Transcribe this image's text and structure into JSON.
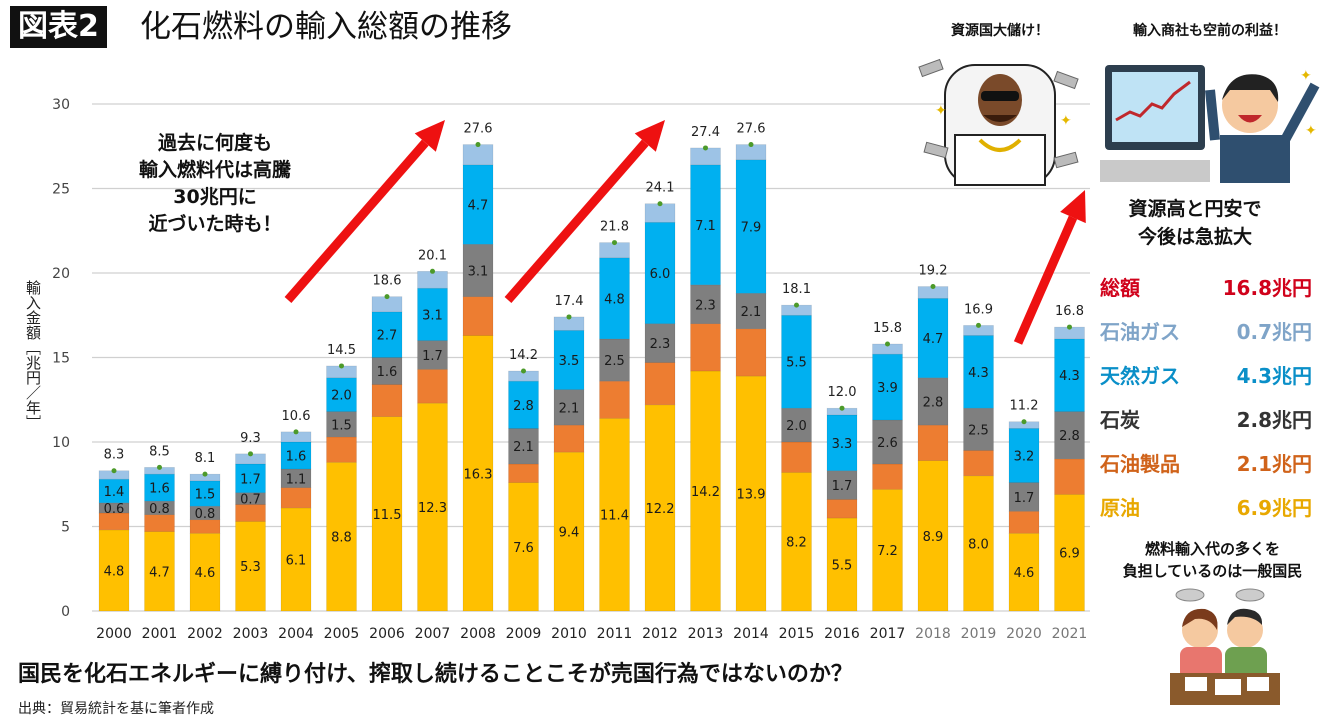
{
  "header": {
    "badge": "図表2",
    "title": "化石燃料の輸入総額の推移"
  },
  "chart_data": {
    "type": "bar",
    "stacked": true,
    "title": "化石燃料の輸入総額の推移",
    "xlabel": "",
    "ylabel": "輸入金額［兆円／年］",
    "ylim": [
      0,
      30
    ],
    "yticks": [
      0,
      5,
      10,
      15,
      20,
      25,
      30
    ],
    "grid": true,
    "categories": [
      "2000",
      "2001",
      "2002",
      "2003",
      "2004",
      "2005",
      "2006",
      "2007",
      "2008",
      "2009",
      "2010",
      "2011",
      "2012",
      "2013",
      "2014",
      "2015",
      "2016",
      "2017",
      "2018",
      "2019",
      "2020",
      "2021"
    ],
    "light_categories": [
      "2018",
      "2019",
      "2020",
      "2021"
    ],
    "totals": [
      8.3,
      8.5,
      8.1,
      9.3,
      10.6,
      14.5,
      18.6,
      20.1,
      27.6,
      14.2,
      17.4,
      21.8,
      24.1,
      27.4,
      27.6,
      18.1,
      12.0,
      15.8,
      19.2,
      16.9,
      11.2,
      16.8
    ],
    "series": [
      {
        "name": "原油",
        "color": "#ffc000",
        "labeled": true,
        "values": [
          4.8,
          4.7,
          4.6,
          5.3,
          6.1,
          8.8,
          11.5,
          12.3,
          16.3,
          7.6,
          9.4,
          11.4,
          12.2,
          14.2,
          13.9,
          8.2,
          5.5,
          7.2,
          8.9,
          8.0,
          4.6,
          6.9
        ]
      },
      {
        "name": "石油製品",
        "color": "#ed7d31",
        "labeled": false,
        "values": [
          1.0,
          1.0,
          0.8,
          1.0,
          1.2,
          1.5,
          1.9,
          2.0,
          2.3,
          1.1,
          1.6,
          2.2,
          2.5,
          2.8,
          2.8,
          1.8,
          1.1,
          1.5,
          2.1,
          1.5,
          1.3,
          2.1
        ]
      },
      {
        "name": "石炭",
        "color": "#7f7f7f",
        "labeled": true,
        "values": [
          0.6,
          0.8,
          0.8,
          0.7,
          1.1,
          1.5,
          1.6,
          1.7,
          3.1,
          2.1,
          2.1,
          2.5,
          2.3,
          2.3,
          2.1,
          2.0,
          1.7,
          2.6,
          2.8,
          2.5,
          1.7,
          2.8
        ]
      },
      {
        "name": "天然ガス",
        "color": "#00b0f0",
        "labeled": true,
        "values": [
          1.4,
          1.6,
          1.5,
          1.7,
          1.6,
          2.0,
          2.7,
          3.1,
          4.7,
          2.8,
          3.5,
          4.8,
          6.0,
          7.1,
          7.9,
          5.5,
          3.3,
          3.9,
          4.7,
          4.3,
          3.2,
          4.3
        ]
      },
      {
        "name": "石油ガス",
        "color": "#9dc3e6",
        "labeled": false,
        "values": [
          0.5,
          0.4,
          0.4,
          0.6,
          0.6,
          0.7,
          0.9,
          1.0,
          1.2,
          0.6,
          0.8,
          0.9,
          1.1,
          1.0,
          0.9,
          0.6,
          0.4,
          0.6,
          0.7,
          0.6,
          0.4,
          0.7
        ]
      }
    ],
    "legend": {
      "placement": "right",
      "year": "2021",
      "entries": [
        {
          "name": "総額",
          "value": "16.8兆円",
          "color": "#d0021b"
        },
        {
          "name": "石油ガス",
          "value": "0.7兆円",
          "color": "#7fa4c8"
        },
        {
          "name": "天然ガス",
          "value": "4.3兆円",
          "color": "#0a8fc8"
        },
        {
          "name": "石炭",
          "value": "2.8兆円",
          "color": "#333333"
        },
        {
          "name": "石油製品",
          "value": "2.1兆円",
          "color": "#d0631a"
        },
        {
          "name": "原油",
          "value": "6.9兆円",
          "color": "#e8a800"
        }
      ]
    },
    "annotations": [
      "過去に何度も\n輸入燃料代は高騰\n30兆円に\n近づいた時も！",
      "資源高と円安で\n今後は急拡大"
    ]
  },
  "captions": {
    "resource_country": "資源国大儲け！",
    "trading_company": "輸入商社も空前の利益！",
    "burden": "燃料輸入代の多くを\n負担しているのは一般国民"
  },
  "footer": {
    "question": "国民を化石エネルギーに縛り付け、搾取し続けることこそが売国行為ではないのか？",
    "source": "出典：貿易統計を基に筆者作成"
  },
  "colors": {
    "arrow": "#ee1111",
    "total_marker": "#4c9a2a",
    "grid": "#d0d0d0"
  }
}
